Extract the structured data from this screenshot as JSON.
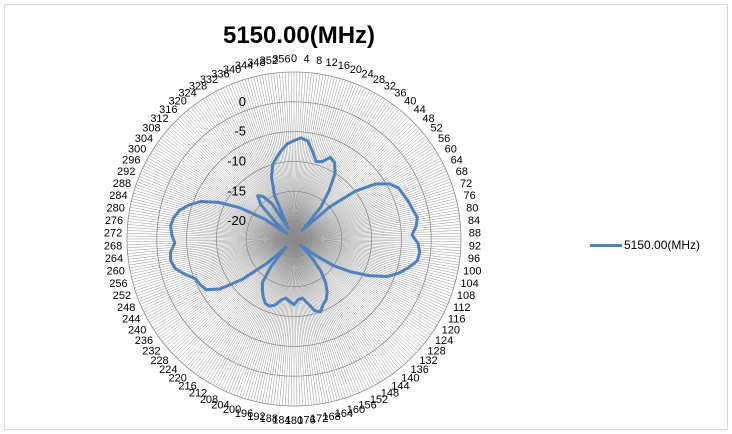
{
  "chart_data": {
    "type": "radar",
    "title": "5150.00(MHz)",
    "angle_labels": [
      "0",
      "4",
      "8",
      "12",
      "16",
      "20",
      "24",
      "28",
      "32",
      "36",
      "40",
      "44",
      "48",
      "52",
      "56",
      "60",
      "64",
      "68",
      "72",
      "76",
      "80",
      "84",
      "88",
      "92",
      "96",
      "100",
      "104",
      "108",
      "112",
      "116",
      "120",
      "124",
      "128",
      "132",
      "136",
      "140",
      "144",
      "148",
      "152",
      "156",
      "160",
      "164",
      "168",
      "172",
      "176",
      "180",
      "184",
      "188",
      "192",
      "196",
      "200",
      "204",
      "208",
      "212",
      "216",
      "220",
      "224",
      "228",
      "232",
      "236",
      "240",
      "244",
      "248",
      "252",
      "256",
      "260",
      "264",
      "268",
      "272",
      "276",
      "280",
      "284",
      "288",
      "292",
      "296",
      "300",
      "304",
      "308",
      "312",
      "316",
      "320",
      "324",
      "328",
      "332",
      "336",
      "340",
      "344",
      "348",
      "352",
      "356"
    ],
    "radial_ticks": [
      0,
      -5,
      -10,
      -15,
      -20
    ],
    "radial_range": [
      -23,
      5
    ],
    "grid": true,
    "legend_position": "right",
    "series": [
      {
        "name": "5150.00(MHz)",
        "color": "#4f81bd",
        "angles": [
          0,
          4,
          8,
          12,
          16,
          20,
          24,
          28,
          32,
          36,
          40,
          44,
          48,
          52,
          56,
          60,
          64,
          68,
          72,
          76,
          80,
          84,
          88,
          92,
          96,
          100,
          104,
          108,
          112,
          116,
          120,
          124,
          128,
          132,
          136,
          140,
          144,
          148,
          152,
          156,
          160,
          164,
          168,
          172,
          176,
          180,
          184,
          188,
          192,
          196,
          200,
          204,
          208,
          212,
          216,
          220,
          224,
          228,
          232,
          236,
          240,
          244,
          248,
          252,
          256,
          260,
          264,
          268,
          272,
          276,
          280,
          284,
          288,
          292,
          296,
          300,
          304,
          308,
          312,
          316,
          320,
          324,
          328,
          332,
          336,
          340,
          344,
          348,
          352,
          356
        ],
        "values": [
          -6.5,
          -6,
          -6.4,
          -8,
          -9.5,
          -9.2,
          -8,
          -8.5,
          -10,
          -13,
          -16,
          -21,
          -15,
          -10,
          -6.5,
          -4.5,
          -3.5,
          -3.2,
          -2.8,
          -2.5,
          -2,
          -2.4,
          -3.2,
          -2.2,
          -1.8,
          -2,
          -3.2,
          -4.5,
          -6.2,
          -9,
          -12,
          -15,
          -19,
          -21.5,
          -19,
          -16,
          -14,
          -12.5,
          -11.5,
          -11,
          -10,
          -10.5,
          -12,
          -13,
          -12.8,
          -12,
          -12.5,
          -13,
          -12.5,
          -11.5,
          -11,
          -11.2,
          -12,
          -13,
          -14,
          -17,
          -21,
          -17,
          -12,
          -8,
          -6,
          -5.5,
          -5.2,
          -3.8,
          -2.5,
          -2,
          -2.2,
          -3,
          -2.5,
          -2.2,
          -2.5,
          -3.2,
          -4.5,
          -6.2,
          -9,
          -12.5,
          -17,
          -21.5,
          -19,
          -15,
          -13.5,
          -14.2,
          -16,
          -21,
          -15,
          -12,
          -10,
          -9,
          -8,
          -7
        ]
      }
    ]
  }
}
